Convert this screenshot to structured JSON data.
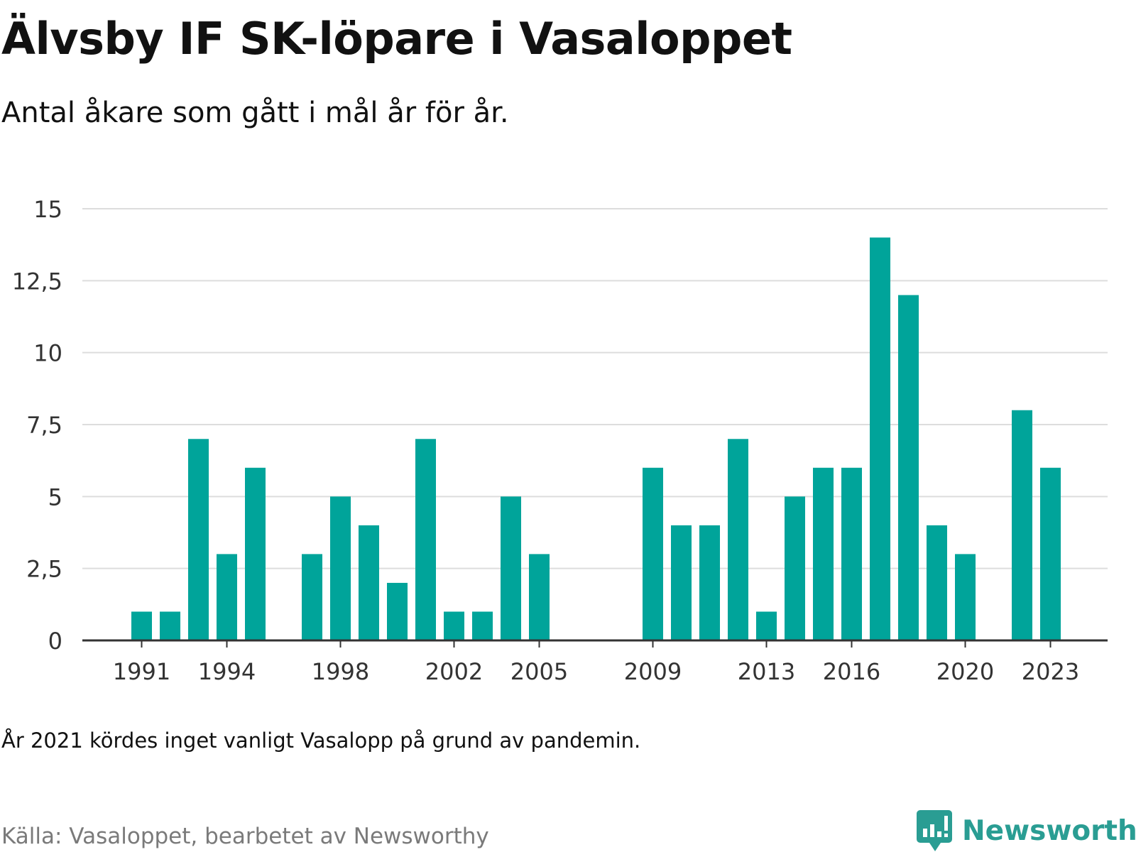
{
  "header": {
    "title": "Älvsby IF SK-löpare i Vasaloppet",
    "subtitle": "Antal åkare som gått i mål år för år."
  },
  "footer": {
    "note": "År 2021 kördes inget vanligt Vasalopp på grund av pandemin.",
    "source": "Källa: Vasaloppet, bearbetet av Newsworthy",
    "brand_name": "Newsworthy",
    "brand_icon": "newsworthy-logo-icon"
  },
  "colors": {
    "bar": "#00a49a",
    "grid": "#dddddd",
    "axis": "#333333",
    "brand": "#2a9d93",
    "source_text": "#7a7a7a"
  },
  "chart_data": {
    "type": "bar",
    "title": "Älvsby IF SK-löpare i Vasaloppet",
    "subtitle": "Antal åkare som gått i mål år för år.",
    "xlabel": "",
    "ylabel": "",
    "ylim": [
      0,
      15
    ],
    "yticks": [
      0,
      2.5,
      5,
      7.5,
      10,
      12.5,
      15
    ],
    "ytick_labels": [
      "0",
      "2,5",
      "5",
      "7,5",
      "10",
      "12,5",
      "15"
    ],
    "xlim": [
      1989,
      2025
    ],
    "xticks": [
      1991,
      1994,
      1998,
      2002,
      2005,
      2009,
      2013,
      2016,
      2020,
      2023
    ],
    "xtick_labels": [
      "1991",
      "1994",
      "1998",
      "2002",
      "2005",
      "2009",
      "2013",
      "2016",
      "2020",
      "2023"
    ],
    "grid": true,
    "categories": [
      1991,
      1992,
      1993,
      1994,
      1995,
      1997,
      1998,
      1999,
      2000,
      2001,
      2002,
      2003,
      2004,
      2005,
      2009,
      2010,
      2011,
      2012,
      2013,
      2014,
      2015,
      2016,
      2017,
      2018,
      2019,
      2020,
      2022,
      2023
    ],
    "values": [
      1,
      1,
      7,
      3,
      6,
      3,
      5,
      4,
      2,
      7,
      1,
      1,
      5,
      3,
      6,
      4,
      4,
      7,
      1,
      5,
      6,
      6,
      14,
      12,
      4,
      3,
      8,
      6
    ]
  }
}
